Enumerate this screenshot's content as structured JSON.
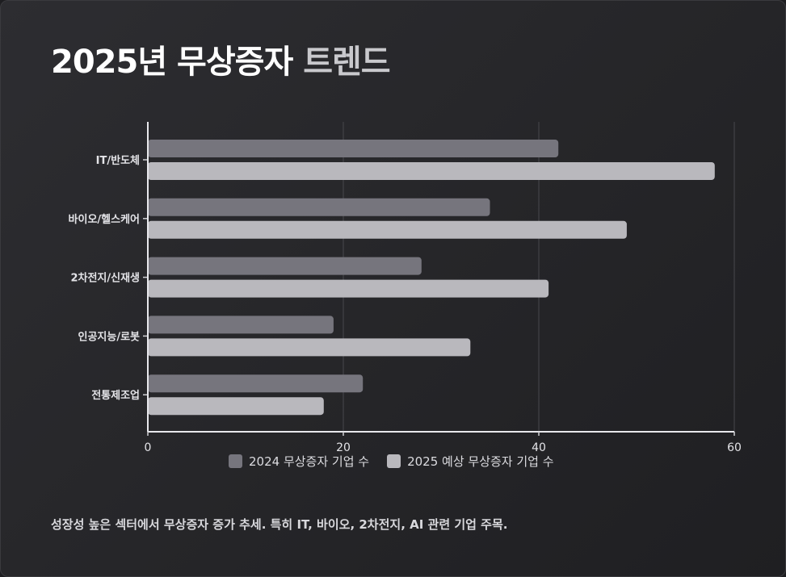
{
  "title": {
    "part1": "2025년 무상증자",
    "part2": "트렌드"
  },
  "chart_data": {
    "type": "bar",
    "orientation": "horizontal",
    "categories": [
      "IT/반도체",
      "바이오/헬스케어",
      "2차전지/신재생",
      "인공지능/로봇",
      "전통제조업"
    ],
    "series": [
      {
        "name": "2024 무상증자 기업 수",
        "values": [
          42,
          35,
          28,
          19,
          22
        ],
        "color": "#76757d"
      },
      {
        "name": "2025 예상 무상증자 기업 수",
        "values": [
          58,
          49,
          41,
          33,
          18
        ],
        "color": "#b9b8bd"
      }
    ],
    "xlim": [
      0,
      60
    ],
    "xticks": [
      0,
      20,
      40,
      60
    ],
    "grid": true,
    "legend_position": "bottom"
  },
  "note": "성장성 높은 섹터에서 무상증자 증가 추세. 특히 IT, 바이오, 2차전지, AI 관련 기업 주목."
}
